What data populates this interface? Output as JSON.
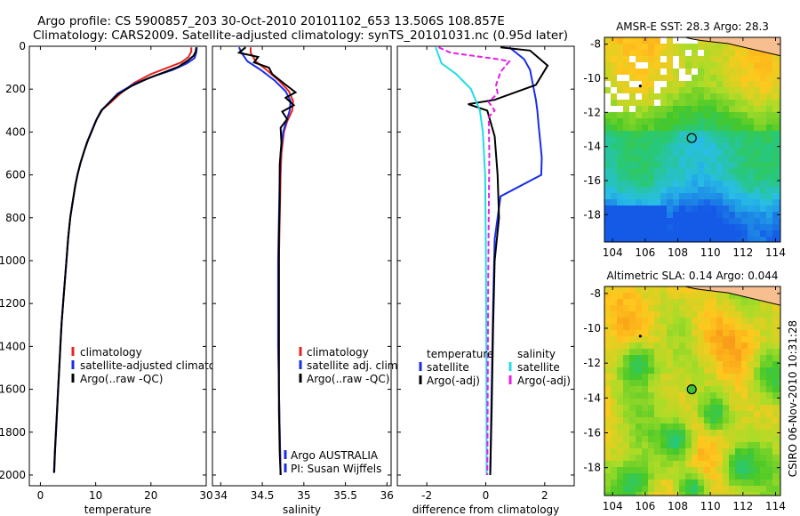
{
  "header": {
    "line1": "Argo profile: CS 5900857_203 30-Oct-2010 20101102_653 13.506S 108.857E",
    "line2": "Climatology: CARS2009. Satellite-adjusted climatology: synTS_20101031.nc (0.95d later)"
  },
  "side_label": "CSIRO 06-Nov-2010 10:31:28",
  "chart_data": [
    {
      "id": "temperature",
      "type": "line",
      "xlabel": "temperature",
      "ylabel": "",
      "xlim": [
        -2,
        30
      ],
      "ylim": [
        2050,
        0
      ],
      "xticks": [
        0,
        10,
        20,
        30
      ],
      "yticks": [
        0,
        200,
        400,
        600,
        800,
        1000,
        1200,
        1400,
        1600,
        1800,
        2000
      ],
      "legend": [
        "climatology",
        "satellite-adjusted climatology",
        "Argo(..raw -QC)"
      ],
      "series": [
        {
          "name": "climatology",
          "color": "#e8231e",
          "points": [
            [
              27.3,
              5
            ],
            [
              27.3,
              25
            ],
            [
              26.8,
              50
            ],
            [
              25.5,
              75
            ],
            [
              23,
              100
            ],
            [
              20,
              130
            ],
            [
              17,
              170
            ],
            [
              14.5,
              220
            ],
            [
              12.8,
              260
            ],
            [
              11,
              300
            ],
            [
              10,
              350
            ],
            [
              9.2,
              400
            ],
            [
              8.4,
              450
            ],
            [
              7.8,
              500
            ],
            [
              7.2,
              550
            ],
            [
              6.7,
              600
            ],
            [
              6.3,
              650
            ],
            [
              6,
              700
            ],
            [
              5.7,
              750
            ],
            [
              5.4,
              800
            ],
            [
              5,
              900
            ],
            [
              4.7,
              1000
            ],
            [
              4.4,
              1100
            ],
            [
              4.1,
              1200
            ],
            [
              3.8,
              1300
            ],
            [
              3.6,
              1400
            ],
            [
              3.4,
              1500
            ],
            [
              3.2,
              1600
            ],
            [
              3,
              1700
            ],
            [
              2.8,
              1800
            ],
            [
              2.6,
              1900
            ],
            [
              2.45,
              1990
            ]
          ]
        },
        {
          "name": "satellite-adjusted climatology",
          "color": "#1a2ee6",
          "points": [
            [
              28.3,
              5
            ],
            [
              28.2,
              30
            ],
            [
              27.9,
              55
            ],
            [
              26.5,
              80
            ],
            [
              24,
              110
            ],
            [
              20.5,
              140
            ],
            [
              17,
              175
            ],
            [
              14,
              220
            ],
            [
              12.5,
              260
            ],
            [
              11,
              300
            ],
            [
              10,
              350
            ],
            [
              9.2,
              400
            ],
            [
              8.4,
              450
            ],
            [
              7.8,
              500
            ],
            [
              7.2,
              550
            ],
            [
              6.7,
              600
            ],
            [
              6.3,
              650
            ],
            [
              6,
              700
            ],
            [
              5.7,
              750
            ],
            [
              5.4,
              800
            ],
            [
              5,
              900
            ],
            [
              4.7,
              1000
            ],
            [
              4.4,
              1100
            ],
            [
              4.1,
              1200
            ],
            [
              3.8,
              1300
            ],
            [
              3.6,
              1400
            ],
            [
              3.4,
              1500
            ],
            [
              3.2,
              1600
            ],
            [
              3,
              1700
            ],
            [
              2.8,
              1800
            ],
            [
              2.6,
              1900
            ],
            [
              2.45,
              1990
            ]
          ]
        },
        {
          "name": "Argo(..raw -QC)",
          "color": "#000000",
          "points": [
            [
              28.2,
              5
            ],
            [
              28.1,
              25
            ],
            [
              27.7,
              45
            ],
            [
              26.5,
              70
            ],
            [
              25,
              95
            ],
            [
              22.5,
              120
            ],
            [
              19.5,
              150
            ],
            [
              16.5,
              185
            ],
            [
              14,
              225
            ],
            [
              12.6,
              260
            ],
            [
              11.2,
              295
            ],
            [
              10.2,
              340
            ],
            [
              9.4,
              390
            ],
            [
              8.6,
              440
            ],
            [
              7.9,
              490
            ],
            [
              7.3,
              540
            ],
            [
              6.8,
              590
            ],
            [
              6.4,
              640
            ],
            [
              6.05,
              690
            ],
            [
              5.75,
              740
            ],
            [
              5.45,
              790
            ],
            [
              5.05,
              890
            ],
            [
              4.75,
              990
            ],
            [
              4.45,
              1090
            ],
            [
              4.15,
              1190
            ],
            [
              3.85,
              1290
            ],
            [
              3.65,
              1390
            ],
            [
              3.45,
              1490
            ],
            [
              3.25,
              1590
            ],
            [
              3.05,
              1690
            ],
            [
              2.85,
              1790
            ],
            [
              2.65,
              1890
            ],
            [
              2.5,
              1990
            ]
          ]
        }
      ]
    },
    {
      "id": "salinity",
      "type": "line",
      "xlabel": "salinity",
      "ylabel": "",
      "xlim": [
        33.9,
        36.05
      ],
      "ylim": [
        2050,
        0
      ],
      "xticks": [
        34,
        34.5,
        35,
        35.5,
        36
      ],
      "xticklabels": [
        "34",
        "34.5",
        "35",
        "35.5",
        "36"
      ],
      "legend": [
        "climatology",
        "satellite adj. clim.",
        "Argo(..raw -QC)"
      ],
      "annotations": [
        "Argo AUSTRALIA",
        "PI: Susan Wijffels"
      ],
      "series": [
        {
          "name": "climatology",
          "color": "#e8231e",
          "points": [
            [
              34.36,
              5
            ],
            [
              34.36,
              30
            ],
            [
              34.42,
              70
            ],
            [
              34.55,
              110
            ],
            [
              34.7,
              160
            ],
            [
              34.82,
              210
            ],
            [
              34.87,
              255
            ],
            [
              34.86,
              300
            ],
            [
              34.8,
              350
            ],
            [
              34.76,
              400
            ],
            [
              34.73,
              500
            ],
            [
              34.72,
              600
            ],
            [
              34.71,
              800
            ],
            [
              34.7,
              1000
            ],
            [
              34.7,
              1200
            ],
            [
              34.7,
              1400
            ],
            [
              34.7,
              1600
            ],
            [
              34.71,
              1800
            ],
            [
              34.72,
              2000
            ]
          ]
        },
        {
          "name": "satellite adj. clim.",
          "color": "#1a2ee6",
          "points": [
            [
              34.22,
              5
            ],
            [
              34.25,
              30
            ],
            [
              34.32,
              70
            ],
            [
              34.48,
              110
            ],
            [
              34.65,
              160
            ],
            [
              34.78,
              210
            ],
            [
              34.84,
              255
            ],
            [
              34.83,
              300
            ],
            [
              34.79,
              350
            ],
            [
              34.75,
              400
            ],
            [
              34.72,
              500
            ],
            [
              34.71,
              600
            ],
            [
              34.7,
              800
            ],
            [
              34.69,
              1000
            ],
            [
              34.69,
              1200
            ],
            [
              34.69,
              1400
            ],
            [
              34.7,
              1600
            ],
            [
              34.71,
              1800
            ],
            [
              34.72,
              2000
            ]
          ]
        },
        {
          "name": "Argo(..raw -QC)",
          "color": "#000000",
          "points": [
            [
              34.3,
              5
            ],
            [
              34.22,
              30
            ],
            [
              34.45,
              50
            ],
            [
              34.4,
              75
            ],
            [
              34.58,
              100
            ],
            [
              34.62,
              130
            ],
            [
              34.75,
              170
            ],
            [
              34.9,
              215
            ],
            [
              34.78,
              240
            ],
            [
              34.88,
              275
            ],
            [
              34.74,
              305
            ],
            [
              34.8,
              340
            ],
            [
              34.72,
              380
            ],
            [
              34.73,
              450
            ],
            [
              34.71,
              550
            ],
            [
              34.71,
              700
            ],
            [
              34.7,
              900
            ],
            [
              34.7,
              1100
            ],
            [
              34.7,
              1300
            ],
            [
              34.7,
              1500
            ],
            [
              34.7,
              1700
            ],
            [
              34.71,
              1900
            ],
            [
              34.72,
              2000
            ]
          ]
        }
      ]
    },
    {
      "id": "difference",
      "type": "line",
      "xlabel": "difference from climatology",
      "ylabel": "",
      "xlim": [
        -3,
        3
      ],
      "ylim": [
        2050,
        0
      ],
      "xticks": [
        -2,
        0,
        2
      ],
      "legend_headers": [
        "temperature",
        "salinity"
      ],
      "legend_temperature": [
        "satellite",
        "Argo(-adj)"
      ],
      "legend_salinity": [
        "satellite",
        "Argo(-adj)"
      ],
      "series": [
        {
          "name": "temperature satellite",
          "color": "#1a2ee6",
          "points": [
            [
              0.8,
              5
            ],
            [
              1.3,
              60
            ],
            [
              1.5,
              110
            ],
            [
              1.6,
              180
            ],
            [
              1.7,
              250
            ],
            [
              1.75,
              300
            ],
            [
              1.8,
              380
            ],
            [
              1.85,
              450
            ],
            [
              1.9,
              520
            ],
            [
              1.88,
              600
            ],
            [
              0.5,
              700
            ],
            [
              0.3,
              900
            ],
            [
              0.25,
              1200
            ],
            [
              0.2,
              1600
            ],
            [
              0.15,
              2000
            ]
          ]
        },
        {
          "name": "temperature Argo(-adj)",
          "color": "#000000",
          "points": [
            [
              0.5,
              5
            ],
            [
              1.5,
              20
            ],
            [
              2.1,
              90
            ],
            [
              1.7,
              180
            ],
            [
              1.1,
              210
            ],
            [
              0.3,
              250
            ],
            [
              -0.6,
              270
            ],
            [
              0.05,
              300
            ],
            [
              0.3,
              420
            ],
            [
              0.4,
              600
            ],
            [
              0.45,
              800
            ],
            [
              0.3,
              1000
            ],
            [
              0.25,
              1300
            ],
            [
              0.2,
              1700
            ],
            [
              0.15,
              2000
            ]
          ]
        },
        {
          "name": "salinity satellite",
          "color": "#20dce6",
          "points": [
            [
              -1.7,
              5
            ],
            [
              -1.5,
              80
            ],
            [
              -1.0,
              130
            ],
            [
              -0.5,
              200
            ],
            [
              -0.2,
              300
            ],
            [
              -0.1,
              400
            ],
            [
              -0.02,
              600
            ],
            [
              0.0,
              900
            ],
            [
              0.02,
              1400
            ],
            [
              0.03,
              2000
            ]
          ]
        },
        {
          "name": "salinity Argo(-adj)",
          "color": "#e61ee6",
          "points": [
            [
              -1.6,
              5
            ],
            [
              -1.2,
              30
            ],
            [
              0.4,
              60
            ],
            [
              0.8,
              70
            ],
            [
              0.5,
              120
            ],
            [
              0.35,
              180
            ],
            [
              0.4,
              220
            ],
            [
              0.1,
              260
            ],
            [
              0.3,
              300
            ],
            [
              0.1,
              330
            ],
            [
              0.12,
              500
            ],
            [
              0.1,
              800
            ],
            [
              0.08,
              1100
            ],
            [
              0.07,
              1500
            ],
            [
              0.06,
              1800
            ],
            [
              0.05,
              2000
            ]
          ]
        }
      ]
    },
    {
      "id": "sst-map",
      "type": "heatmap",
      "title": "AMSR-E SST: 28.3 Argo: 28.3",
      "xlim": [
        103.5,
        114.3
      ],
      "ylim": [
        -19.6,
        -7.6
      ],
      "xticks": [
        104,
        106,
        108,
        110,
        112,
        114
      ],
      "yticks": [
        -8,
        -10,
        -12,
        -14,
        -16,
        -18
      ],
      "marker": {
        "lon": 108.857,
        "lat": -13.506
      }
    },
    {
      "id": "sla-map",
      "type": "heatmap",
      "title": "Altimetric SLA: 0.14 Argo: 0.044",
      "xlim": [
        103.5,
        114.3
      ],
      "ylim": [
        -19.6,
        -7.6
      ],
      "xticks": [
        104,
        106,
        108,
        110,
        112,
        114
      ],
      "yticks": [
        -8,
        -10,
        -12,
        -14,
        -16,
        -18
      ],
      "marker": {
        "lon": 108.857,
        "lat": -13.506
      }
    }
  ]
}
